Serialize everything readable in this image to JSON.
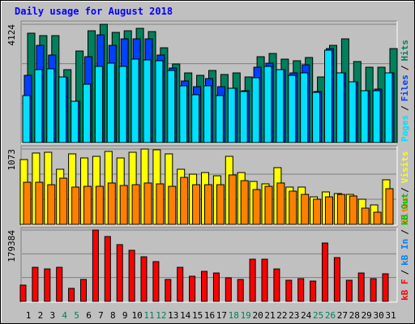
{
  "title": "Daily usage for August 2018",
  "legend_separator": "/",
  "chart_data": [
    {
      "type": "bar",
      "ylim": [
        0,
        4124
      ],
      "yticks": [
        4124
      ],
      "series": [
        {
          "name": "Pages",
          "color": "#00e0ff",
          "values": [
            1639,
            2543,
            2571,
            2288,
            1441,
            2034,
            2656,
            2769,
            2656,
            2910,
            2882,
            2853,
            2514,
            1978,
            1667,
            1978,
            1639,
            1893,
            1780,
            2260,
            2656,
            2543,
            2345,
            2430,
            1752,
            3221,
            2430,
            2119,
            1808,
            1808,
            2430
          ]
        },
        {
          "name": "Files",
          "color": "#0040ff",
          "values": [
            2345,
            3390,
            3051,
            2260,
            1441,
            2994,
            3757,
            3390,
            3616,
            3616,
            3616,
            3051,
            2599,
            2147,
            1949,
            2232,
            1949,
            1893,
            1808,
            2627,
            2768,
            2542,
            2429,
            2712,
            1780,
            3277,
            2429,
            2119,
            1808,
            1864,
            2429
          ]
        },
        {
          "name": "Hits",
          "color": "#00805c",
          "values": [
            3814,
            3729,
            3729,
            2542,
            3192,
            3898,
            4124,
            3842,
            3898,
            3983,
            3870,
            3305,
            2740,
            2429,
            2345,
            2514,
            2373,
            2429,
            2288,
            2994,
            3107,
            2909,
            2853,
            2966,
            2288,
            3390,
            3616,
            2825,
            2627,
            2627,
            3277
          ]
        }
      ]
    },
    {
      "type": "bar",
      "ylim": [
        0,
        1073
      ],
      "yticks": [
        1073
      ],
      "series": [
        {
          "name": "Sites",
          "color": "#ff8000",
          "values": [
            600,
            600,
            565,
            658,
            531,
            542,
            542,
            589,
            554,
            565,
            589,
            577,
            542,
            669,
            565,
            565,
            565,
            704,
            623,
            496,
            542,
            589,
            473,
            427,
            358,
            392,
            427,
            404,
            231,
            173,
            508
          ]
        },
        {
          "name": "Visits",
          "color": "#ffff00",
          "values": [
            923,
            1016,
            1027,
            785,
            1004,
            946,
            969,
            1039,
            946,
            1027,
            1073,
            1062,
            1004,
            785,
            715,
            738,
            692,
            969,
            738,
            612,
            577,
            808,
            531,
            531,
            392,
            462,
            439,
            427,
            358,
            277,
            635
          ]
        }
      ]
    },
    {
      "type": "bar",
      "ylim": [
        0,
        179384
      ],
      "yticks": [
        179384
      ],
      "series": [
        {
          "name": "kB F",
          "color": "#ff0000",
          "values": [
            40760,
            85600,
            81520,
            85600,
            32610,
            55030,
            179384,
            163050,
            142670,
            128400,
            112100,
            99870,
            55030,
            85600,
            63180,
            75410,
            71330,
            59100,
            55030,
            105980,
            105980,
            81520,
            52990,
            57070,
            50950,
            146740,
            110050,
            52990,
            71330,
            57070,
            69290
          ]
        }
      ],
      "extra_legend": [
        {
          "name": "kB In",
          "color": "#0080ff"
        },
        {
          "name": "kB Out",
          "color": "#00c000"
        }
      ],
      "categories": [
        "1",
        "2",
        "3",
        "4",
        "5",
        "6",
        "7",
        "8",
        "9",
        "10",
        "11",
        "12",
        "13",
        "14",
        "15",
        "16",
        "17",
        "18",
        "19",
        "20",
        "21",
        "22",
        "23",
        "24",
        "25",
        "26",
        "27",
        "28",
        "29",
        "30",
        "31"
      ],
      "category_colors": [
        "#000",
        "#000",
        "#000",
        "#00805c",
        "#00805c",
        "#000",
        "#000",
        "#000",
        "#000",
        "#000",
        "#00805c",
        "#00805c",
        "#000",
        "#000",
        "#000",
        "#000",
        "#000",
        "#00805c",
        "#00805c",
        "#000",
        "#000",
        "#000",
        "#000",
        "#000",
        "#00805c",
        "#00805c",
        "#000",
        "#000",
        "#000",
        "#000",
        "#000"
      ]
    }
  ]
}
